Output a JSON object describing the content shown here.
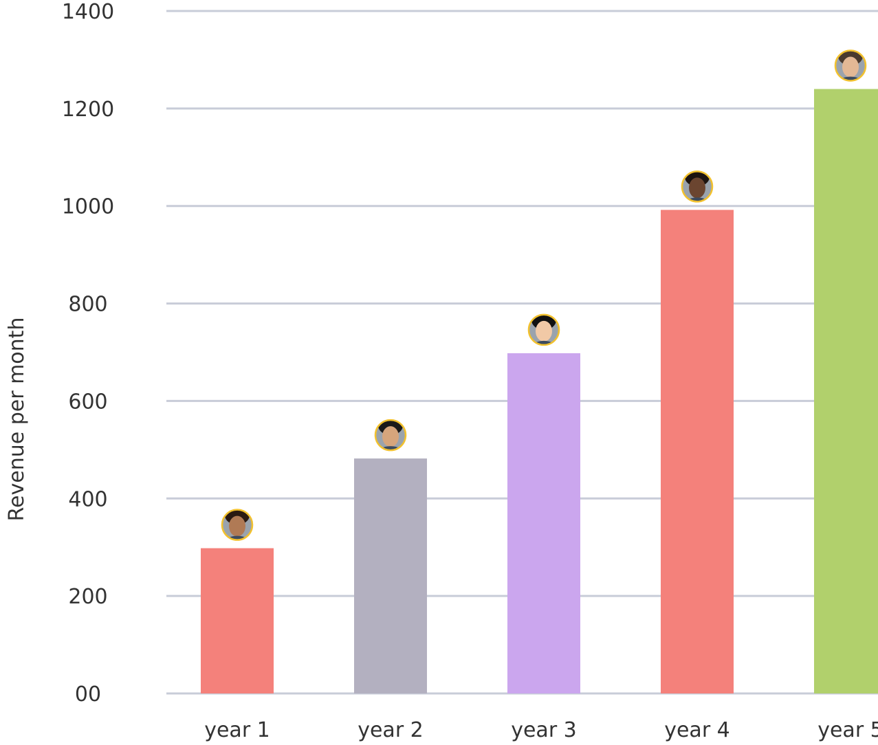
{
  "chart_data": {
    "type": "bar",
    "title": "",
    "xlabel": "",
    "ylabel": "Revenue per month",
    "ylim": [
      0,
      1400
    ],
    "yticks": [
      {
        "value": 0,
        "label": "00"
      },
      {
        "value": 200,
        "label": "200"
      },
      {
        "value": 400,
        "label": "400"
      },
      {
        "value": 600,
        "label": "600"
      },
      {
        "value": 800,
        "label": "800"
      },
      {
        "value": 1000,
        "label": "1000"
      },
      {
        "value": 1200,
        "label": "1200"
      },
      {
        "value": 1400,
        "label": "1400"
      }
    ],
    "grid": true,
    "legend": "none",
    "categories": [
      "year 1",
      "year 2",
      "year 3",
      "year 4",
      "year 5"
    ],
    "values": [
      298,
      482,
      698,
      992,
      1240
    ],
    "colors": [
      "#f4817b",
      "#b3b0c0",
      "#cba6ee",
      "#f4817b",
      "#b1d06c"
    ],
    "markers": [
      "avatar-icon",
      "avatar-icon",
      "avatar-icon",
      "avatar-icon",
      "avatar-icon"
    ],
    "marker_ring_color": "#f2c12e",
    "grid_color": "#c8ccd8"
  }
}
